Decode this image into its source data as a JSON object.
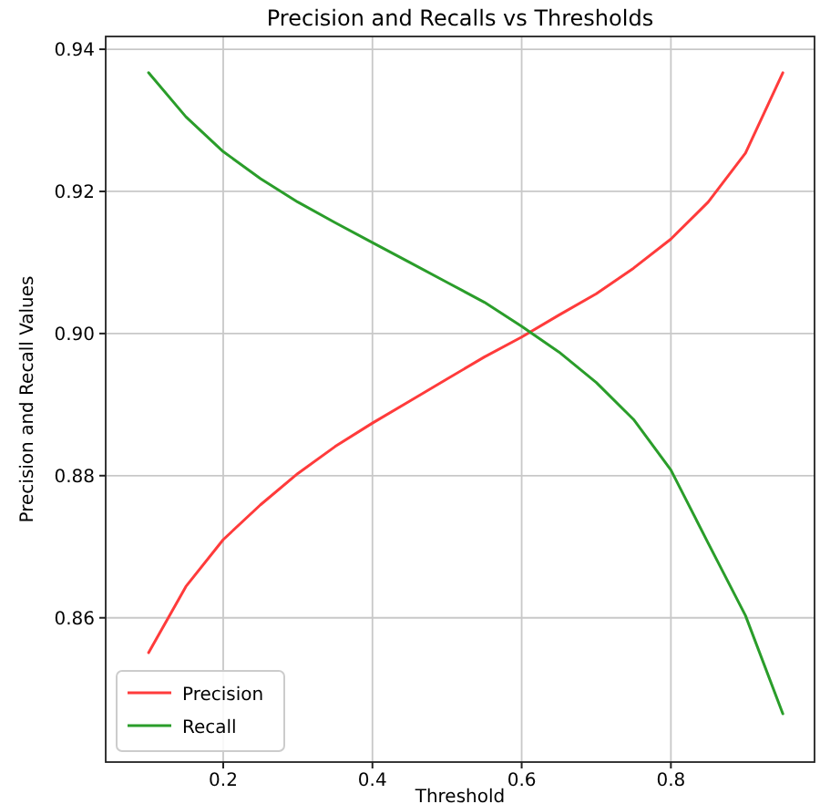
{
  "chart_data": {
    "type": "line",
    "title": "Precision and Recalls vs Thresholds",
    "xlabel": "Threshold",
    "ylabel": "Precision and Recall Values",
    "x": [
      0.1,
      0.15,
      0.2,
      0.25,
      0.3,
      0.35,
      0.4,
      0.45,
      0.5,
      0.55,
      0.6,
      0.65,
      0.7,
      0.75,
      0.8,
      0.85,
      0.9,
      0.95
    ],
    "series": [
      {
        "name": "Precision",
        "color": "#ff3b3b",
        "values": [
          0.8551,
          0.8644,
          0.871,
          0.8759,
          0.8803,
          0.8841,
          0.8874,
          0.8905,
          0.8936,
          0.8967,
          0.8995,
          0.9026,
          0.9056,
          0.9092,
          0.9133,
          0.9185,
          0.9254,
          0.9367
        ]
      },
      {
        "name": "Recall",
        "color": "#2a9d2a",
        "values": [
          0.9367,
          0.9305,
          0.9256,
          0.9218,
          0.9185,
          0.9156,
          0.9128,
          0.91,
          0.9072,
          0.9044,
          0.901,
          0.8974,
          0.8931,
          0.8879,
          0.8808,
          0.8705,
          0.8603,
          0.8465
        ]
      }
    ],
    "xlim": [
      0.0425,
      0.9925
    ],
    "ylim": [
      0.8397,
      0.9418
    ],
    "xticks": [
      0.2,
      0.4,
      0.6,
      0.8
    ],
    "yticks": [
      0.86,
      0.88,
      {
        "value": 0.9,
        "label": "0.90"
      },
      0.92,
      0.94
    ],
    "grid": true,
    "legend": "bottom left",
    "marker": "none",
    "line_style": "solid"
  }
}
